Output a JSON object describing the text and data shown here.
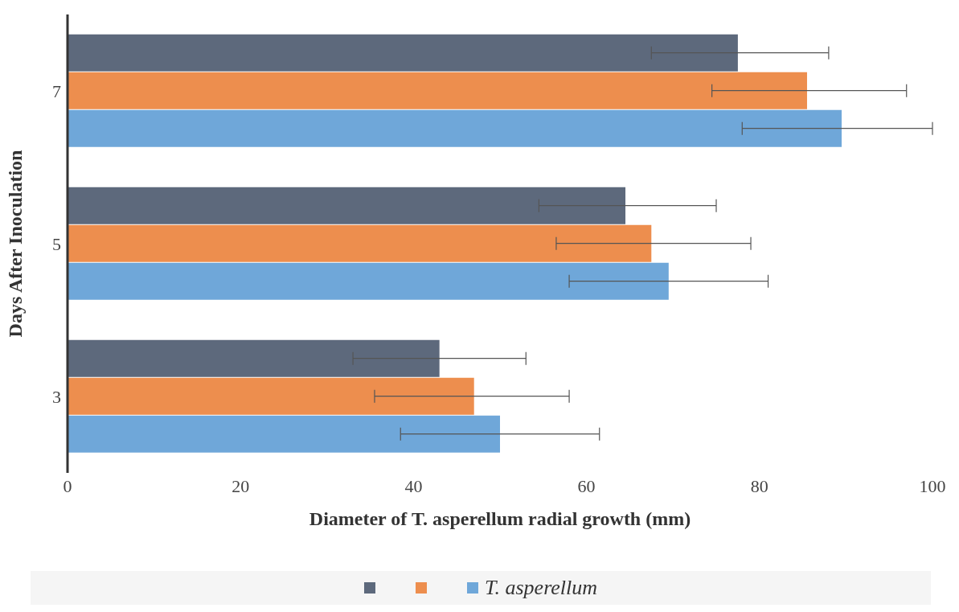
{
  "chart_data": {
    "type": "bar",
    "orientation": "horizontal",
    "xlabel": "Diameter of T. asperellum radial growth (mm)",
    "ylabel": "Days After Inoculation",
    "categories": [
      "7",
      "5",
      "3"
    ],
    "series": [
      {
        "color": "#5d697c",
        "values": [
          77.5,
          64.5,
          43
        ],
        "errors": [
          [
            67.5,
            88
          ],
          [
            54.5,
            75
          ],
          [
            33,
            53
          ]
        ]
      },
      {
        "color": "#ed8e4e",
        "values": [
          85.5,
          67.5,
          47
        ],
        "errors": [
          [
            74.5,
            97
          ],
          [
            56.5,
            79
          ],
          [
            35.5,
            58
          ]
        ]
      },
      {
        "name": "T. asperellum",
        "color": "#6fa7d9",
        "values": [
          89.5,
          69.5,
          50
        ],
        "errors": [
          [
            78,
            100
          ],
          [
            58,
            81
          ],
          [
            38.5,
            61.5
          ]
        ]
      }
    ],
    "xlim": [
      0,
      100
    ],
    "xticks": [
      0,
      20,
      40,
      60,
      80,
      100
    ],
    "grid": false,
    "legend": "bottom"
  }
}
